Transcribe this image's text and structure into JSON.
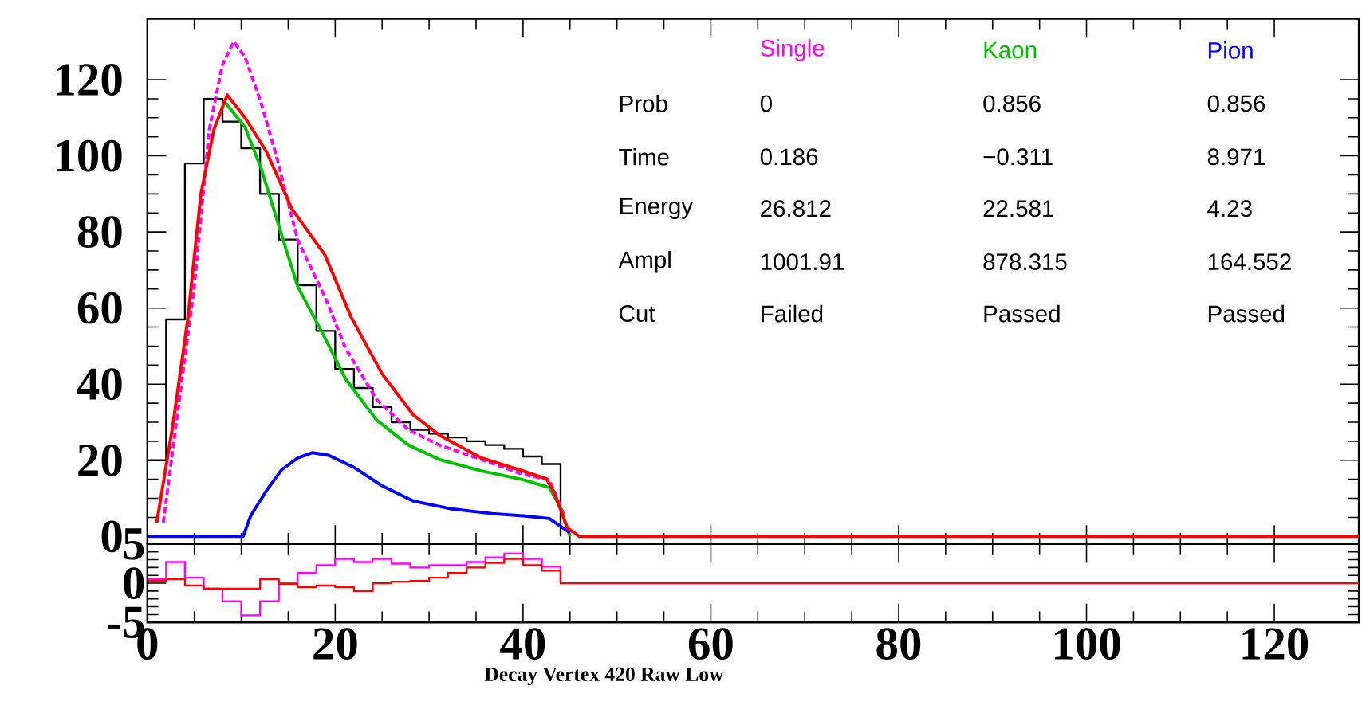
{
  "chart_data": [
    {
      "type": "line",
      "tick_labels": "y",
      "xlim": [
        0,
        129
      ],
      "ylim": [
        -2,
        136
      ],
      "xticks": [
        0,
        20,
        40,
        60,
        80,
        100,
        120
      ],
      "yticks": [
        0,
        20,
        40,
        60,
        80,
        100,
        120
      ],
      "series": [
        {
          "type": "histogram",
          "color": "#000000",
          "bins": [
            0,
            2,
            4,
            6,
            8,
            10,
            12,
            14,
            16,
            18,
            20,
            22,
            24,
            26,
            28,
            30,
            32,
            34,
            36,
            38,
            40,
            42,
            44
          ],
          "values": [
            20,
            57,
            98,
            115,
            109,
            102,
            90,
            78,
            66,
            54,
            44,
            39,
            34,
            30,
            28,
            27,
            26,
            25,
            24,
            23,
            21,
            19
          ]
        },
        {
          "name": "Single",
          "color": "#ff00ff",
          "line_style": "dashed",
          "x": [
            1.7,
            2.7,
            5.0,
            6.6,
            8.0,
            9.2,
            10.4,
            12.1,
            13.8,
            16.0,
            18.9,
            21.1,
            24.4,
            27.8,
            31.1,
            35.6,
            40,
            42.8,
            44.4
          ],
          "values": [
            3.6,
            22.6,
            65.7,
            107,
            124,
            130,
            126,
            114,
            99.4,
            77.9,
            63,
            49.5,
            36,
            28,
            24,
            20.2,
            16.3,
            14.9,
            5.4
          ]
        },
        {
          "name": "Kaon",
          "color": "#00c000",
          "x": [
            8.3,
            10.4,
            12.1,
            13.8,
            16.0,
            18.9,
            21.1,
            24.4,
            27.8,
            31.1,
            35.6,
            40,
            42.8,
            43.9,
            44.7,
            45
          ],
          "values": [
            114,
            107.5,
            96.8,
            83.2,
            65.7,
            52.2,
            41.4,
            30.6,
            24,
            20.2,
            17.2,
            14.9,
            12.8,
            8.1,
            2.3,
            0
          ]
        },
        {
          "name": "Pion",
          "color": "#0000ff",
          "x": [
            0,
            10.2,
            11.0,
            12.7,
            14.3,
            16.0,
            17.6,
            19.3,
            22.1,
            25,
            28.3,
            32.2,
            36.7,
            40,
            42.8,
            44.4,
            45
          ],
          "values": [
            0,
            0,
            5.4,
            12.1,
            17.5,
            20.6,
            22,
            21.3,
            18,
            13.3,
            9.3,
            7.3,
            6,
            5.4,
            4.7,
            2,
            1
          ]
        },
        {
          "color": "#ff0000",
          "x": [
            1.0,
            2.7,
            4.3,
            5.7,
            7.1,
            8.5,
            10.4,
            12.7,
            15.4,
            18.9,
            21.7,
            25,
            28.3,
            31.1,
            35.6,
            40,
            42.5,
            43.3,
            44.7,
            46,
            129
          ],
          "values": [
            3.6,
            29,
            57,
            90,
            107,
            116,
            110,
            101,
            86,
            74,
            57.6,
            42.7,
            32,
            26.6,
            20.6,
            17.2,
            15.1,
            11.7,
            2.3,
            0,
            0
          ]
        }
      ],
      "annotations": [
        "Prob",
        "0",
        "0.856",
        "0.856",
        "Time",
        "0.186",
        "−0.311",
        "8.971",
        "Energy",
        "26.812",
        "22.581",
        "4.23",
        "Ampl",
        "1001.91",
        "878.315",
        "164.552",
        "Cut",
        "Failed",
        "Passed",
        "Passed"
      ]
    },
    {
      "type": "line",
      "xlabel": "Decay Vertex 420 Raw Low",
      "xlim": [
        0,
        129
      ],
      "ylim": [
        -5,
        5
      ],
      "xticks": [
        0,
        20,
        40,
        60,
        80,
        100,
        120
      ],
      "yticks": [
        -5,
        0,
        5
      ],
      "series": [
        {
          "type": "step",
          "color": "#ff00ff",
          "x": [
            0,
            2,
            4,
            6,
            8,
            10,
            12,
            14,
            16,
            18,
            20,
            22,
            24,
            26,
            28,
            30,
            32,
            34,
            36,
            38,
            40,
            42,
            44
          ],
          "values": [
            0.5,
            2.7,
            0.7,
            -0.7,
            -2.3,
            -4.1,
            -2.3,
            0,
            1.3,
            2.3,
            3.1,
            2.7,
            3.1,
            2.5,
            2.0,
            2.3,
            2.3,
            2.7,
            3.3,
            3.8,
            3.1,
            2.1,
            0
          ]
        },
        {
          "type": "step",
          "color": "#ff0000",
          "x": [
            0,
            2,
            4,
            6,
            8,
            10,
            12,
            14,
            16,
            18,
            20,
            22,
            24,
            26,
            28,
            30,
            32,
            34,
            36,
            38,
            40,
            42,
            44,
            129
          ],
          "values": [
            0.3,
            0.5,
            -0.3,
            -0.7,
            -0.7,
            -0.7,
            0.5,
            -0.1,
            -0.5,
            -0.3,
            -0.5,
            -1.0,
            0,
            0.2,
            0.3,
            0.7,
            1.3,
            2.0,
            2.6,
            3.1,
            2.3,
            1.6,
            0,
            0
          ]
        }
      ]
    }
  ]
}
